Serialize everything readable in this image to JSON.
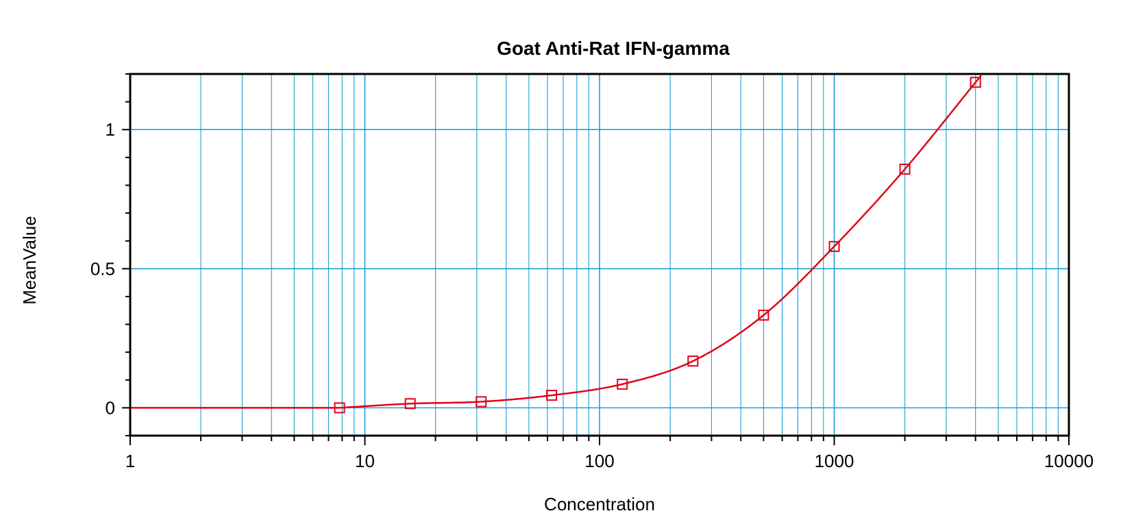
{
  "chart_data": {
    "type": "scatter",
    "title": "Goat Anti-Rat IFN-gamma",
    "xlabel": "Concentration",
    "ylabel": "MeanValue",
    "x_scale": "log",
    "xlim": [
      1,
      10000
    ],
    "ylim": [
      -0.1,
      1.2
    ],
    "x_tick_labels": [
      "1",
      "10",
      "100",
      "1000",
      "10000"
    ],
    "x_tick_values": [
      1,
      10,
      100,
      1000,
      10000
    ],
    "y_tick_labels": [
      "0",
      "0.5",
      "1"
    ],
    "y_tick_values": [
      0,
      0.5,
      1
    ],
    "grid": true,
    "series": [
      {
        "x": [
          7.8,
          15.6,
          31.3,
          62.5,
          125,
          250,
          500,
          1000,
          2000,
          4000
        ],
        "y": [
          0.0,
          0.015,
          0.022,
          0.045,
          0.085,
          0.168,
          0.333,
          0.58,
          0.858,
          1.17
        ],
        "color": "#e0001b",
        "marker": "square"
      }
    ],
    "fit_curve": {
      "type": "line",
      "color": "#e0001b"
    },
    "colors": {
      "grid": "#1aa0d8",
      "axis": "#000000",
      "series": "#e0001b"
    }
  }
}
